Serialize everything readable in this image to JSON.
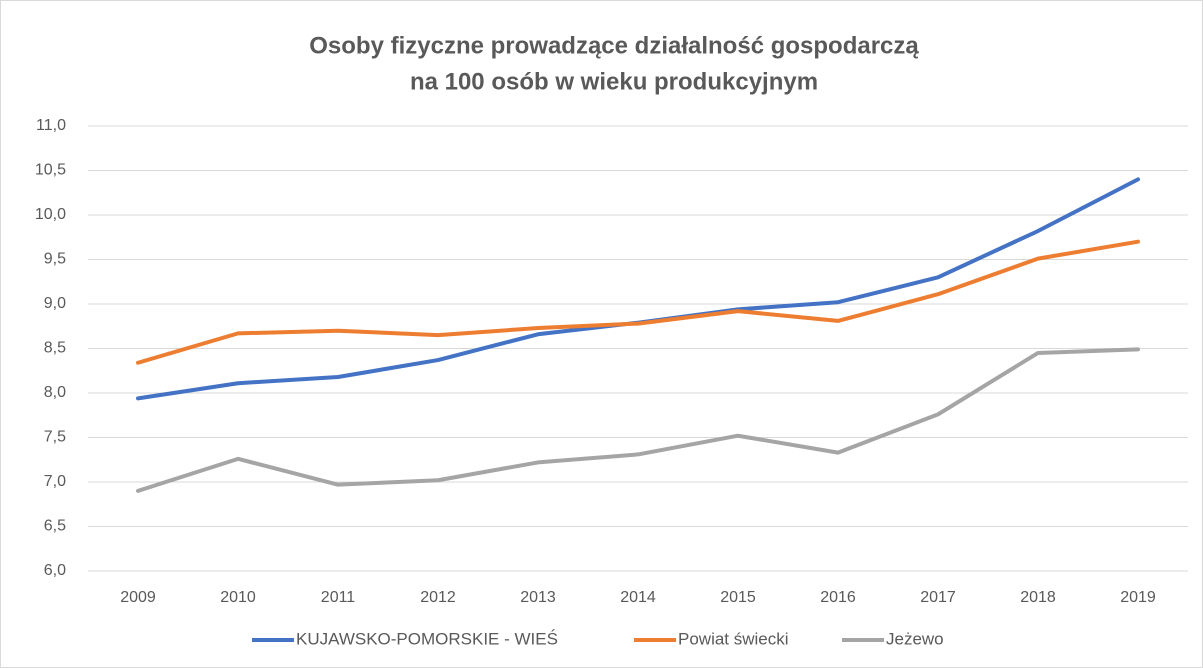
{
  "chart_data": {
    "type": "line",
    "title": [
      "Osoby fizyczne prowadzące działalność  gospodarczą",
      "na 100 osób w wieku produkcyjnym"
    ],
    "categories": [
      "2009",
      "2010",
      "2011",
      "2012",
      "2013",
      "2014",
      "2015",
      "2016",
      "2017",
      "2018",
      "2019"
    ],
    "series": [
      {
        "name": "KUJAWSKO-POMORSKIE - WIEŚ",
        "color": "#4472c4",
        "values": [
          7.94,
          8.11,
          8.18,
          8.37,
          8.66,
          8.79,
          8.94,
          9.02,
          9.3,
          9.82,
          10.4
        ]
      },
      {
        "name": "Powiat świecki",
        "color": "#ed7d31",
        "values": [
          8.34,
          8.67,
          8.7,
          8.65,
          8.73,
          8.78,
          8.92,
          8.81,
          9.11,
          9.51,
          9.7
        ]
      },
      {
        "name": "Jeżewo",
        "color": "#a5a5a5",
        "values": [
          6.9,
          7.26,
          6.97,
          7.02,
          7.22,
          7.31,
          7.52,
          7.33,
          7.76,
          8.45,
          8.49
        ]
      }
    ],
    "ylim": [
      6,
      11
    ],
    "yticks": [
      {
        "value": 6,
        "label": "6,0"
      },
      {
        "value": 6.5,
        "label": "6,5"
      },
      {
        "value": 7,
        "label": "7,0"
      },
      {
        "value": 7.5,
        "label": "7,5"
      },
      {
        "value": 8,
        "label": "8,0"
      },
      {
        "value": 8.5,
        "label": "8,5"
      },
      {
        "value": 9,
        "label": "9,0"
      },
      {
        "value": 9.5,
        "label": "9,5"
      },
      {
        "value": 10,
        "label": "10,0"
      },
      {
        "value": 10.5,
        "label": "10,5"
      },
      {
        "value": 11,
        "label": "11,0"
      }
    ],
    "grid": true,
    "legend": "bottom"
  }
}
